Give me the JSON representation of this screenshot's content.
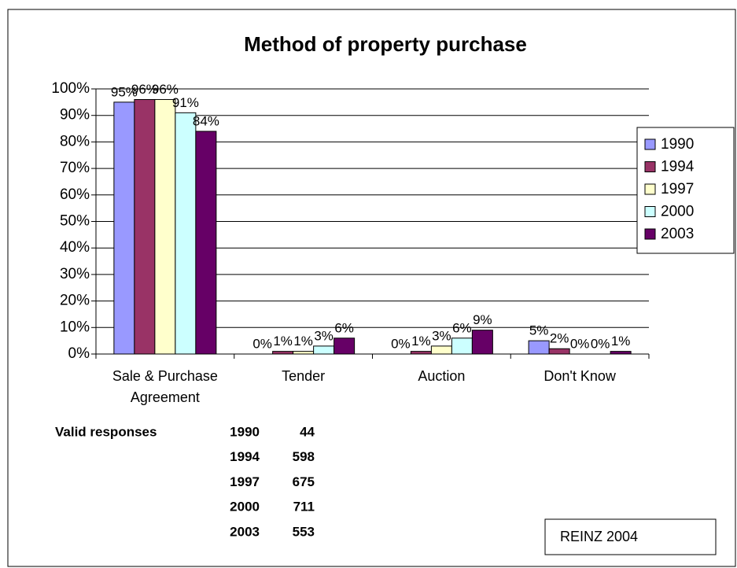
{
  "chart_data": {
    "type": "bar",
    "title": "Method of property purchase",
    "categories": [
      "Sale & Purchase Agreement",
      "Tender",
      "Auction",
      "Don't Know"
    ],
    "series": [
      {
        "name": "1990",
        "color": "#9999ff",
        "values": [
          95,
          0,
          0,
          5
        ],
        "value_labels": [
          "95%",
          "0%",
          "0%",
          "5%"
        ]
      },
      {
        "name": "1994",
        "color": "#993366",
        "values": [
          96,
          1,
          1,
          2
        ],
        "value_labels": [
          "96%",
          "1%",
          "1%",
          "2%"
        ]
      },
      {
        "name": "1997",
        "color": "#ffffcc",
        "values": [
          96,
          1,
          3,
          0
        ],
        "value_labels": [
          "96%",
          "1%",
          "3%",
          "0%"
        ]
      },
      {
        "name": "2000",
        "color": "#ccffff",
        "values": [
          91,
          3,
          6,
          0
        ],
        "value_labels": [
          "91%",
          "3%",
          "6%",
          "0%"
        ]
      },
      {
        "name": "2003",
        "color": "#660066",
        "values": [
          84,
          6,
          9,
          1
        ],
        "value_labels": [
          "84%",
          "6%",
          "9%",
          "1%"
        ]
      }
    ],
    "ylim": [
      0,
      100
    ],
    "yticks": [
      {
        "value": 0,
        "label": "0%"
      },
      {
        "value": 10,
        "label": "10%"
      },
      {
        "value": 20,
        "label": "20%"
      },
      {
        "value": 30,
        "label": "30%"
      },
      {
        "value": 40,
        "label": "40%"
      },
      {
        "value": 50,
        "label": "50%"
      },
      {
        "value": 60,
        "label": "60%"
      },
      {
        "value": 70,
        "label": "70%"
      },
      {
        "value": 80,
        "label": "80%"
      },
      {
        "value": 90,
        "label": "90%"
      },
      {
        "value": 100,
        "label": "100%"
      }
    ],
    "grid": true,
    "legend": "right"
  },
  "valid_responses": {
    "label": "Valid responses",
    "rows": [
      [
        "1990",
        "44"
      ],
      [
        "1994",
        "598"
      ],
      [
        "1997",
        "675"
      ],
      [
        "2000",
        "711"
      ],
      [
        "2003",
        "553"
      ]
    ]
  },
  "source": "REINZ 2004"
}
